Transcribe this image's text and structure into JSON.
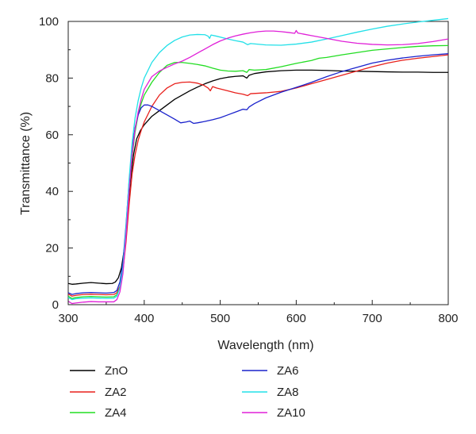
{
  "chart_data": {
    "type": "line",
    "xlabel": "Wavelength (nm)",
    "ylabel": "Transmittance (%)",
    "xlim": [
      300,
      800
    ],
    "ylim": [
      0,
      100
    ],
    "xticks": [
      300,
      400,
      500,
      600,
      700,
      800
    ],
    "yticks": [
      0,
      20,
      40,
      60,
      80,
      100
    ],
    "grid": false,
    "legend_position": "bottom",
    "series": [
      {
        "name": "ZnO",
        "color": "#000000",
        "points": [
          [
            300,
            7.5
          ],
          [
            305,
            7.2
          ],
          [
            310,
            7.3
          ],
          [
            320,
            7.6
          ],
          [
            330,
            7.8
          ],
          [
            340,
            7.6
          ],
          [
            350,
            7.4
          ],
          [
            358,
            7.5
          ],
          [
            362,
            8.0
          ],
          [
            366,
            9.5
          ],
          [
            370,
            13
          ],
          [
            374,
            20
          ],
          [
            378,
            31
          ],
          [
            382,
            44
          ],
          [
            386,
            53
          ],
          [
            390,
            58.5
          ],
          [
            395,
            61.5
          ],
          [
            400,
            63.5
          ],
          [
            410,
            66.5
          ],
          [
            420,
            68.5
          ],
          [
            430,
            70.5
          ],
          [
            440,
            72.5
          ],
          [
            450,
            74
          ],
          [
            460,
            75.5
          ],
          [
            470,
            76.8
          ],
          [
            480,
            78
          ],
          [
            490,
            79
          ],
          [
            500,
            79.8
          ],
          [
            510,
            80.3
          ],
          [
            520,
            80.6
          ],
          [
            530,
            80.8
          ],
          [
            535,
            80
          ],
          [
            538,
            81
          ],
          [
            545,
            81.6
          ],
          [
            560,
            82.2
          ],
          [
            580,
            82.6
          ],
          [
            600,
            82.8
          ],
          [
            620,
            82.8
          ],
          [
            640,
            82.7
          ],
          [
            660,
            82.5
          ],
          [
            680,
            82.4
          ],
          [
            700,
            82.3
          ],
          [
            720,
            82.2
          ],
          [
            740,
            82.1
          ],
          [
            760,
            82.1
          ],
          [
            780,
            82.0
          ],
          [
            800,
            82.0
          ]
        ]
      },
      {
        "name": "ZA2",
        "color": "#e8201c",
        "points": [
          [
            300,
            3.8
          ],
          [
            305,
            3.0
          ],
          [
            310,
            3.3
          ],
          [
            320,
            3.6
          ],
          [
            330,
            3.7
          ],
          [
            340,
            3.6
          ],
          [
            350,
            3.5
          ],
          [
            360,
            3.6
          ],
          [
            364,
            4.2
          ],
          [
            368,
            6.5
          ],
          [
            372,
            12
          ],
          [
            376,
            22
          ],
          [
            380,
            35
          ],
          [
            384,
            46
          ],
          [
            388,
            53
          ],
          [
            392,
            58
          ],
          [
            396,
            61.5
          ],
          [
            400,
            64.5
          ],
          [
            410,
            70
          ],
          [
            420,
            74
          ],
          [
            430,
            76.5
          ],
          [
            440,
            78
          ],
          [
            450,
            78.5
          ],
          [
            460,
            78.6
          ],
          [
            470,
            78.2
          ],
          [
            478,
            77.5
          ],
          [
            484,
            76.5
          ],
          [
            487,
            75.5
          ],
          [
            490,
            77
          ],
          [
            495,
            76.5
          ],
          [
            510,
            75.5
          ],
          [
            520,
            74.8
          ],
          [
            530,
            74.3
          ],
          [
            536,
            73.8
          ],
          [
            540,
            74.5
          ],
          [
            560,
            74.8
          ],
          [
            580,
            75.3
          ],
          [
            600,
            76.5
          ],
          [
            620,
            78
          ],
          [
            640,
            79.5
          ],
          [
            660,
            81
          ],
          [
            680,
            82.5
          ],
          [
            700,
            84
          ],
          [
            720,
            85.3
          ],
          [
            740,
            86.3
          ],
          [
            760,
            87
          ],
          [
            780,
            87.6
          ],
          [
            800,
            88.2
          ]
        ]
      },
      {
        "name": "ZA4",
        "color": "#22dd22",
        "points": [
          [
            300,
            3.0
          ],
          [
            305,
            2.2
          ],
          [
            310,
            2.5
          ],
          [
            320,
            2.8
          ],
          [
            330,
            2.9
          ],
          [
            340,
            2.8
          ],
          [
            350,
            2.7
          ],
          [
            360,
            2.8
          ],
          [
            364,
            3.5
          ],
          [
            368,
            6
          ],
          [
            372,
            13
          ],
          [
            376,
            25
          ],
          [
            380,
            40
          ],
          [
            384,
            52
          ],
          [
            388,
            61
          ],
          [
            392,
            67
          ],
          [
            396,
            71
          ],
          [
            400,
            74
          ],
          [
            410,
            78.5
          ],
          [
            420,
            82
          ],
          [
            430,
            84.5
          ],
          [
            440,
            85.5
          ],
          [
            450,
            85.5
          ],
          [
            460,
            85.2
          ],
          [
            470,
            84.8
          ],
          [
            480,
            84.3
          ],
          [
            490,
            83.5
          ],
          [
            500,
            82.8
          ],
          [
            510,
            82.5
          ],
          [
            520,
            82.4
          ],
          [
            530,
            82.6
          ],
          [
            535,
            82
          ],
          [
            538,
            83
          ],
          [
            545,
            82.8
          ],
          [
            560,
            83
          ],
          [
            580,
            84
          ],
          [
            600,
            85.2
          ],
          [
            620,
            86.2
          ],
          [
            630,
            87
          ],
          [
            640,
            87.3
          ],
          [
            660,
            88.2
          ],
          [
            680,
            89
          ],
          [
            700,
            89.8
          ],
          [
            720,
            90.3
          ],
          [
            740,
            90.8
          ],
          [
            760,
            91.2
          ],
          [
            780,
            91.4
          ],
          [
            800,
            91.5
          ]
        ]
      },
      {
        "name": "ZA6",
        "color": "#1a22cc",
        "points": [
          [
            300,
            4.2
          ],
          [
            305,
            3.6
          ],
          [
            310,
            3.9
          ],
          [
            320,
            4.2
          ],
          [
            330,
            4.3
          ],
          [
            340,
            4.2
          ],
          [
            350,
            4.1
          ],
          [
            360,
            4.3
          ],
          [
            364,
            5
          ],
          [
            368,
            8
          ],
          [
            372,
            15
          ],
          [
            376,
            28
          ],
          [
            380,
            43
          ],
          [
            384,
            55
          ],
          [
            388,
            62.5
          ],
          [
            392,
            67
          ],
          [
            396,
            69.5
          ],
          [
            400,
            70.5
          ],
          [
            405,
            70.5
          ],
          [
            410,
            70
          ],
          [
            420,
            68.5
          ],
          [
            430,
            67
          ],
          [
            440,
            65.5
          ],
          [
            448,
            64.2
          ],
          [
            455,
            64.5
          ],
          [
            460,
            64.8
          ],
          [
            465,
            64
          ],
          [
            470,
            64.2
          ],
          [
            480,
            64.7
          ],
          [
            490,
            65.3
          ],
          [
            500,
            66
          ],
          [
            510,
            67
          ],
          [
            520,
            68
          ],
          [
            530,
            69
          ],
          [
            535,
            68.8
          ],
          [
            538,
            69.8
          ],
          [
            545,
            71
          ],
          [
            560,
            73
          ],
          [
            580,
            75
          ],
          [
            600,
            76.7
          ],
          [
            620,
            78.5
          ],
          [
            640,
            80.5
          ],
          [
            660,
            82.3
          ],
          [
            680,
            83.8
          ],
          [
            700,
            85.3
          ],
          [
            720,
            86.3
          ],
          [
            740,
            87.1
          ],
          [
            760,
            87.7
          ],
          [
            780,
            88.2
          ],
          [
            800,
            88.6
          ]
        ]
      },
      {
        "name": "ZA8",
        "color": "#22e0e8",
        "points": [
          [
            300,
            2.5
          ],
          [
            305,
            1.8
          ],
          [
            310,
            2.1
          ],
          [
            320,
            2.3
          ],
          [
            330,
            2.4
          ],
          [
            340,
            2.3
          ],
          [
            350,
            2.2
          ],
          [
            360,
            2.3
          ],
          [
            364,
            3
          ],
          [
            368,
            6
          ],
          [
            372,
            13
          ],
          [
            376,
            27
          ],
          [
            380,
            44
          ],
          [
            384,
            57
          ],
          [
            388,
            66
          ],
          [
            392,
            72
          ],
          [
            396,
            76.5
          ],
          [
            400,
            80
          ],
          [
            410,
            85.5
          ],
          [
            420,
            89
          ],
          [
            430,
            91.5
          ],
          [
            440,
            93.3
          ],
          [
            450,
            94.5
          ],
          [
            460,
            95.2
          ],
          [
            470,
            95.4
          ],
          [
            480,
            95.3
          ],
          [
            484,
            94.8
          ],
          [
            486,
            94
          ],
          [
            488,
            95.2
          ],
          [
            495,
            94.8
          ],
          [
            510,
            93.8
          ],
          [
            520,
            93.2
          ],
          [
            530,
            92.7
          ],
          [
            536,
            91.8
          ],
          [
            540,
            92.2
          ],
          [
            560,
            91.7
          ],
          [
            580,
            91.6
          ],
          [
            600,
            92
          ],
          [
            620,
            92.7
          ],
          [
            640,
            93.8
          ],
          [
            660,
            95
          ],
          [
            680,
            96.2
          ],
          [
            700,
            97.3
          ],
          [
            720,
            98.3
          ],
          [
            740,
            99.1
          ],
          [
            760,
            99.8
          ],
          [
            780,
            100.4
          ],
          [
            800,
            101
          ]
        ]
      },
      {
        "name": "ZA10",
        "color": "#e020d8",
        "points": [
          [
            300,
            1.2
          ],
          [
            305,
            0.4
          ],
          [
            310,
            0.6
          ],
          [
            320,
            0.9
          ],
          [
            330,
            1.1
          ],
          [
            340,
            1.0
          ],
          [
            350,
            1.0
          ],
          [
            360,
            1.0
          ],
          [
            364,
            1.8
          ],
          [
            368,
            4.5
          ],
          [
            372,
            11
          ],
          [
            376,
            24
          ],
          [
            380,
            40
          ],
          [
            384,
            53
          ],
          [
            388,
            62
          ],
          [
            392,
            68
          ],
          [
            396,
            72.5
          ],
          [
            400,
            76
          ],
          [
            410,
            80.5
          ],
          [
            420,
            82.5
          ],
          [
            430,
            83.8
          ],
          [
            440,
            85
          ],
          [
            450,
            86
          ],
          [
            460,
            87.3
          ],
          [
            470,
            88.8
          ],
          [
            480,
            90.3
          ],
          [
            490,
            91.8
          ],
          [
            500,
            93.1
          ],
          [
            510,
            94.1
          ],
          [
            520,
            94.9
          ],
          [
            530,
            95.5
          ],
          [
            540,
            96
          ],
          [
            550,
            96.4
          ],
          [
            560,
            96.6
          ],
          [
            570,
            96.6
          ],
          [
            580,
            96.4
          ],
          [
            590,
            96.1
          ],
          [
            598,
            95.8
          ],
          [
            600,
            96.8
          ],
          [
            602,
            95.9
          ],
          [
            610,
            95.5
          ],
          [
            620,
            95
          ],
          [
            640,
            94
          ],
          [
            660,
            93
          ],
          [
            680,
            92.3
          ],
          [
            700,
            91.9
          ],
          [
            720,
            91.7
          ],
          [
            740,
            91.8
          ],
          [
            760,
            92.2
          ],
          [
            780,
            92.9
          ],
          [
            800,
            93.8
          ]
        ]
      }
    ]
  }
}
